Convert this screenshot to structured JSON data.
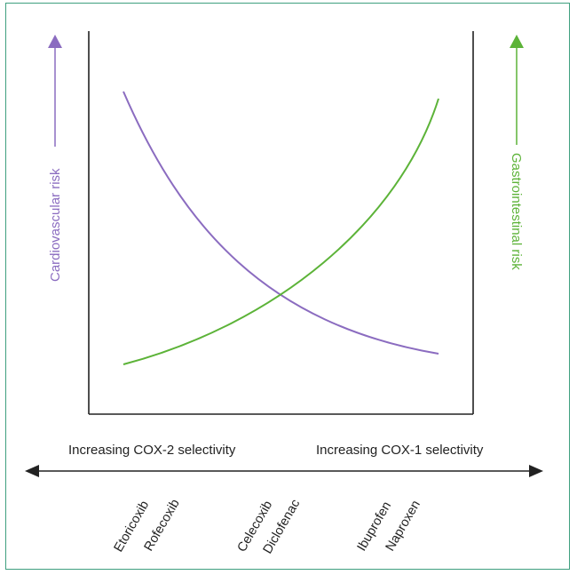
{
  "colors": {
    "cardiovascular": "#8b6cc0",
    "gastrointestinal": "#5cb338",
    "frame": "#3f9f7f",
    "axis": "#222222"
  },
  "labels": {
    "left_axis": "Cardiovascular risk",
    "right_axis": "Gastrointestinal risk",
    "cox2": "Increasing COX-2 selectivity",
    "cox1": "Increasing COX-1 selectivity"
  },
  "drugs": [
    {
      "name": "Etoricoxib"
    },
    {
      "name": "Rofecoxib"
    },
    {
      "name": "Celecoxib"
    },
    {
      "name": "Diclofenac"
    },
    {
      "name": "Ibuprofen"
    },
    {
      "name": "Naproxen"
    }
  ]
}
